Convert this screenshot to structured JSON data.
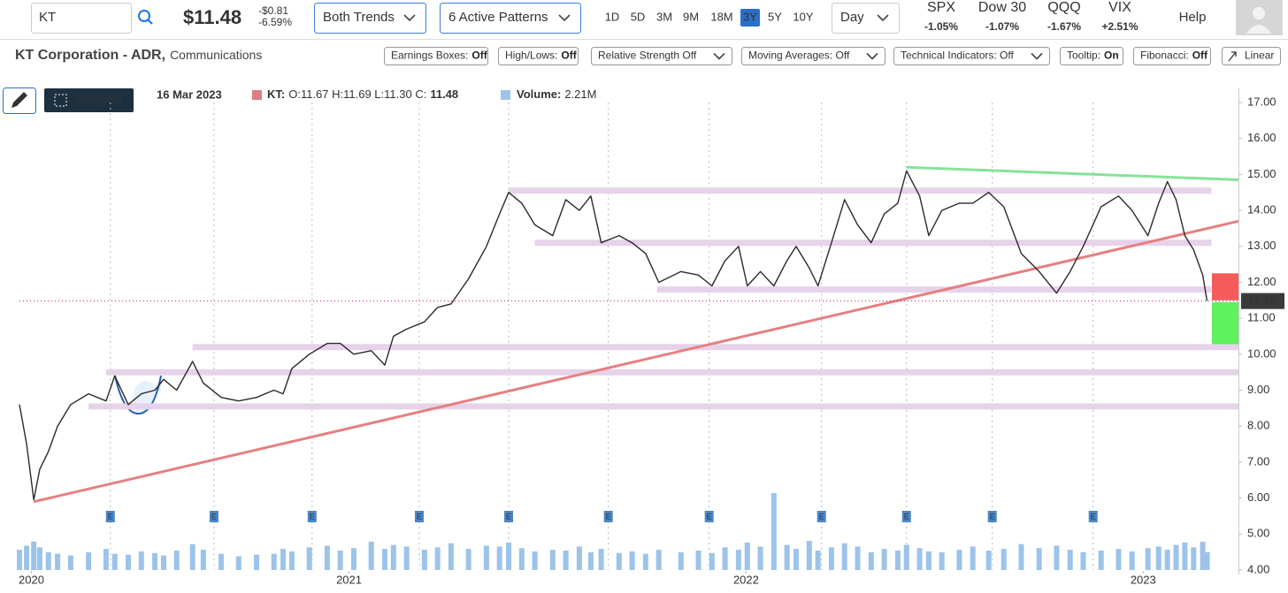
{
  "toolbar": {
    "symbol": "KT",
    "price": "$11.48",
    "change": "-$0.81",
    "change_pct": "-6.59%",
    "trend_menu": "Both Trends",
    "pattern_menu": "6 Active Patterns",
    "ranges": [
      "1D",
      "5D",
      "3M",
      "9M",
      "18M",
      "3Y",
      "5Y",
      "10Y"
    ],
    "active_range": 5,
    "interval": "Day",
    "indices": [
      {
        "name": "SPX",
        "change": "-1.05%",
        "color": "#c0141c"
      },
      {
        "name": "Dow 30",
        "change": "-1.07%",
        "color": "#c0141c"
      },
      {
        "name": "QQQ",
        "change": "-1.67%",
        "color": "#c0141c"
      },
      {
        "name": "VIX",
        "change": "+2.51%",
        "color": "#2e8b2e"
      }
    ],
    "help": "Help"
  },
  "company": {
    "name": "KT Corporation - ADR,",
    "sector": "Communications"
  },
  "toggles": [
    {
      "label": "Earnings Boxes:",
      "state": "Off"
    },
    {
      "label": "High/Lows:",
      "state": "Off"
    },
    {
      "label": "Relative Strength Off",
      "dropdown": true
    },
    {
      "label": "Moving Averages: Off",
      "dropdown": true
    },
    {
      "label": "Technical Indicators: Off",
      "dropdown": true
    },
    {
      "label": "Tooltip:",
      "state": "On"
    },
    {
      "label": "Fibonacci:",
      "state": "Off"
    },
    {
      "label": "Linear"
    }
  ],
  "snapshot": "Snapshot",
  "legend": {
    "date": "16 Mar 2023",
    "ohlc": "O:11.67 H:11.69 L:11.30 C:",
    "close": "11.48",
    "volume": "2.21M"
  },
  "chart_data": {
    "type": "line",
    "x": [
      2020.17,
      2020.188,
      2020.206,
      2020.221,
      2020.243,
      2020.266,
      2020.299,
      2020.344,
      2020.388,
      2020.41,
      2020.444,
      2020.477,
      2020.511,
      2020.533,
      2020.566,
      2020.606,
      2020.633,
      2020.678,
      2020.722,
      2020.767,
      2020.811,
      2020.834,
      2020.856,
      2020.9,
      2020.945,
      2020.978,
      2021.012,
      2021.056,
      2021.09,
      2021.112,
      2021.145,
      2021.19,
      2021.223,
      2021.257,
      2021.301,
      2021.346,
      2021.379,
      2021.402,
      2021.435,
      2021.468,
      2021.513,
      2021.546,
      2021.58,
      2021.609,
      2021.635,
      2021.68,
      2021.713,
      2021.747,
      2021.78,
      2021.836,
      2021.88,
      2021.914,
      2021.947,
      2021.981,
      2022.003,
      2022.036,
      2022.07,
      2022.103,
      2022.126,
      2022.159,
      2022.181,
      2022.215,
      2022.248,
      2022.281,
      2022.315,
      2022.348,
      2022.382,
      2022.404,
      2022.437,
      2022.46,
      2022.493,
      2022.537,
      2022.571,
      2022.611,
      2022.649,
      2022.693,
      2022.738,
      2022.782,
      2022.816,
      2022.849,
      2022.894,
      2022.938,
      2022.972,
      2023.012,
      2023.039,
      2023.061,
      2023.083,
      2023.105,
      2023.127,
      2023.15,
      2023.161
    ],
    "series": [
      {
        "name": "KT:",
        "color": "#2b2b2b",
        "legend_color": "#d98080",
        "values": [
          8.6,
          7.5,
          5.95,
          6.8,
          7.3,
          8.0,
          8.6,
          8.9,
          8.7,
          9.4,
          8.6,
          8.9,
          9.0,
          9.3,
          9.0,
          9.8,
          9.2,
          8.8,
          8.7,
          8.8,
          9.0,
          8.9,
          9.6,
          10.0,
          10.3,
          10.3,
          10.0,
          10.1,
          9.7,
          10.5,
          10.7,
          10.9,
          11.3,
          11.4,
          12.1,
          13.0,
          13.9,
          14.5,
          14.2,
          13.6,
          13.3,
          14.3,
          14.0,
          14.4,
          13.1,
          13.3,
          13.1,
          12.8,
          12.0,
          12.3,
          12.2,
          11.9,
          12.6,
          13.0,
          11.9,
          12.3,
          11.9,
          12.6,
          13.0,
          12.4,
          11.9,
          13.1,
          14.3,
          13.6,
          13.1,
          13.9,
          14.2,
          15.1,
          14.4,
          13.3,
          14.0,
          14.2,
          14.2,
          14.5,
          14.1,
          12.8,
          12.3,
          11.7,
          12.3,
          13.0,
          14.1,
          14.4,
          14.0,
          13.3,
          14.2,
          14.8,
          14.3,
          13.3,
          12.9,
          12.2,
          11.48
        ]
      }
    ],
    "volume": {
      "name": "Volume:",
      "color": "#9cc3ea",
      "ylim": [
        0,
        12
      ],
      "values": [
        2.5,
        3.0,
        3.5,
        2.8,
        2.2,
        2.0,
        1.8,
        2.2,
        2.6,
        2.0,
        1.9,
        2.3,
        2.1,
        1.8,
        2.4,
        3.2,
        2.5,
        2.0,
        1.7,
        1.9,
        2.0,
        2.6,
        2.3,
        2.8,
        3.0,
        2.4,
        2.7,
        3.5,
        2.6,
        3.1,
        2.9,
        2.5,
        2.8,
        3.3,
        2.6,
        3.0,
        2.9,
        3.4,
        2.7,
        2.3,
        2.5,
        2.4,
        2.9,
        2.2,
        2.6,
        2.1,
        2.3,
        2.0,
        2.5,
        2.2,
        2.4,
        2.1,
        2.8,
        2.5,
        3.4,
        2.9,
        9.5,
        3.1,
        2.6,
        3.6,
        2.4,
        2.8,
        3.3,
        2.9,
        2.2,
        2.6,
        2.4,
        3.1,
        2.7,
        2.3,
        2.2,
        2.5,
        2.9,
        2.4,
        2.6,
        3.2,
        2.7,
        3.0,
        2.5,
        2.2,
        2.4,
        2.6,
        2.3,
        2.7,
        2.9,
        2.5,
        3.1,
        3.4,
        2.8,
        3.5,
        2.21
      ]
    },
    "xlim": [
      2020.17,
      2023.24
    ],
    "xticks": [
      {
        "value": 2020.2,
        "label": "2020"
      },
      2021,
      2022,
      2023
    ],
    "ylim": [
      4,
      17
    ],
    "yticks": [
      {
        "value": 4,
        "label": "4.00"
      },
      {
        "value": 5,
        "label": "5.00"
      },
      {
        "value": 6,
        "label": "6.00"
      },
      {
        "value": 7,
        "label": "7.00"
      },
      {
        "value": 8,
        "label": "8.00"
      },
      {
        "value": 9,
        "label": "9.00"
      },
      {
        "value": 10,
        "label": "10.00"
      },
      {
        "value": 11,
        "label": "11.00"
      },
      {
        "value": 12,
        "label": "12.00"
      },
      {
        "value": 13,
        "label": "13.00"
      },
      {
        "value": 14,
        "label": "14.00"
      },
      {
        "value": 15,
        "label": "15.00"
      },
      {
        "value": 16,
        "label": "16.00"
      },
      {
        "value": 17,
        "label": "17.00"
      }
    ],
    "last_price": 11.48,
    "levels": [
      {
        "value": 14.55,
        "start": 2021.402,
        "end": 2023.172
      },
      {
        "value": 13.1,
        "start": 2021.468,
        "end": 2023.172
      },
      {
        "value": 11.8,
        "start": 2021.776,
        "end": 2023.172
      },
      {
        "value": 10.2,
        "start": 2020.606,
        "end": 2023.24
      },
      {
        "value": 9.5,
        "start": 2020.388,
        "end": 2023.24
      },
      {
        "value": 8.55,
        "start": 2020.344,
        "end": 2023.24
      }
    ],
    "trendlines": [
      {
        "color": "#e58080",
        "points": [
          [
            2020.206,
            5.9
          ],
          [
            2023.24,
            13.7
          ]
        ]
      },
      {
        "color": "#86e39a",
        "points": [
          [
            2022.404,
            15.2
          ],
          [
            2023.24,
            14.85
          ]
        ]
      }
    ],
    "targets": [
      {
        "low": 11.5,
        "high": 12.25,
        "color": "#f65b5b"
      },
      {
        "low": 10.28,
        "high": 11.45,
        "color": "#5ef25e"
      }
    ],
    "earnings": {
      "label": "E",
      "dates": [
        2020.399,
        2020.66,
        2020.907,
        2021.177,
        2021.402,
        2021.653,
        2021.907,
        2022.19,
        2022.404,
        2022.62,
        2022.874
      ]
    }
  }
}
